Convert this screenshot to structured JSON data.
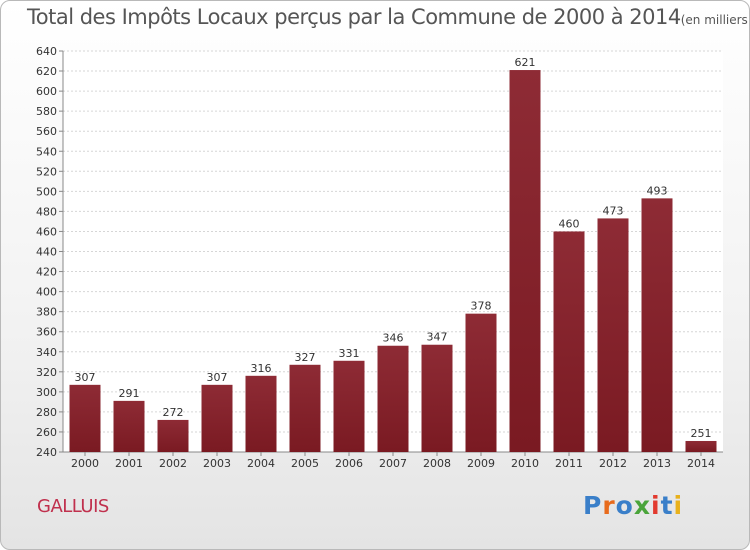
{
  "title": "Total des Impôts Locaux perçus par la Commune de 2000 à 2014",
  "unit": "(en milliers d'€)",
  "commune": "GALLUIS",
  "logo": {
    "text": "Proxiti",
    "colors": [
      "#3a7fc9",
      "#e86b1c",
      "#3a7fc9",
      "#4aa43a",
      "#e23a2f",
      "#3a7fc9",
      "#e8b11c"
    ]
  },
  "bar_color": "#7a1a22",
  "chart_data": {
    "type": "bar",
    "categories": [
      "2000",
      "2001",
      "2002",
      "2003",
      "2004",
      "2005",
      "2006",
      "2007",
      "2008",
      "2009",
      "2010",
      "2011",
      "2012",
      "2013",
      "2014"
    ],
    "values": [
      307,
      291,
      272,
      307,
      316,
      327,
      331,
      346,
      347,
      378,
      621,
      460,
      473,
      493,
      251
    ],
    "ylim": [
      240,
      640
    ],
    "ytick_step": 20,
    "grid": true,
    "xlabel": "",
    "ylabel": ""
  }
}
